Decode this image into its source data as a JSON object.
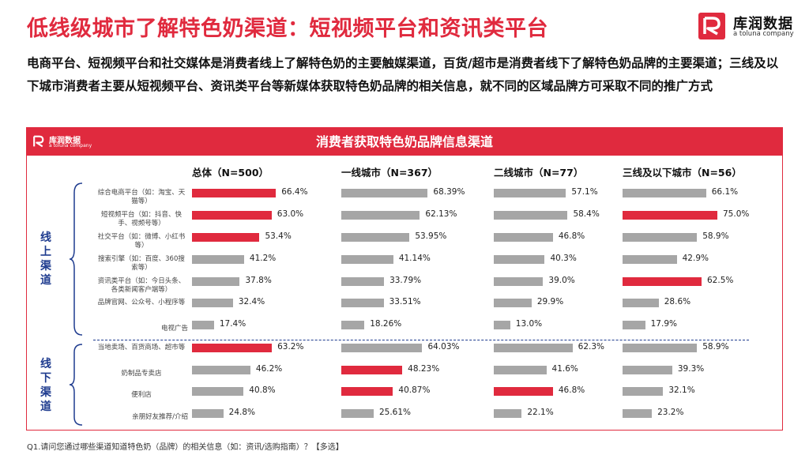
{
  "title": "低线级城市了解特色奶渠道：短视频平台和资讯类平台",
  "logo": {
    "brand": "库润数据",
    "sub": "a toluna company"
  },
  "intro": "电商平台、短视频平台和社交媒体是消费者线上了解特色奶的主要触媒渠道，百货/超市是消费者线下了解特色奶品牌的主要渠道；三线及以下城市消费者主要从短视频平台、资讯类平台等新媒体获取特色奶品牌的相关信息，就不同的区域品牌方可采取不同的推广方式",
  "panel": {
    "title": "消费者获取特色奶品牌信息渠道",
    "logo_brand": "库润数据",
    "logo_sub": "a toluna company"
  },
  "groups": {
    "online": "线上渠道",
    "offline": "线下渠道"
  },
  "footnote": "Q1.请问您通过哪些渠道知道特色奶（品牌）的相关信息（如：资讯/选购指南）？【多选】",
  "colors": {
    "highlight": "#e02a3e",
    "normal": "#a6a6a6",
    "accent_blue": "#1f3c8f"
  },
  "chart_data": {
    "type": "bar",
    "orientation": "horizontal",
    "title": "消费者获取特色奶品牌信息渠道",
    "categories": [
      "综合电商平台（如：淘宝、天猫等）",
      "短视频平台（如：抖音、快手、视频号等）",
      "社交平台（如：微博、小红书等）",
      "搜索引擎（如：百度、360搜索等）",
      "资讯类平台（如：今日头条、各类新闻客户端等）",
      "品牌官网、公众号、小程序等",
      "电视广告",
      "当地卖场、百货商场、超市等",
      "奶制品专卖店",
      "便利店",
      "亲朋好友推荐/介绍"
    ],
    "category_groups": [
      "线上渠道",
      "线上渠道",
      "线上渠道",
      "线上渠道",
      "线上渠道",
      "线上渠道",
      "线上渠道",
      "线下渠道",
      "线下渠道",
      "线下渠道",
      "线下渠道"
    ],
    "series": [
      {
        "name": "总体（N=500）",
        "values": [
          66.4,
          63.0,
          53.4,
          41.2,
          37.8,
          32.4,
          17.4,
          63.2,
          46.2,
          40.8,
          24.8
        ],
        "labels": [
          "66.4%",
          "63.0%",
          "53.4%",
          "41.2%",
          "37.8%",
          "32.4%",
          "17.4%",
          "63.2%",
          "46.2%",
          "40.8%",
          "24.8%"
        ],
        "highlight": [
          true,
          true,
          true,
          false,
          false,
          false,
          false,
          true,
          false,
          false,
          false
        ]
      },
      {
        "name": "一线城市（N=367）",
        "values": [
          68.39,
          62.13,
          53.95,
          41.14,
          33.79,
          33.51,
          18.26,
          64.03,
          48.23,
          40.87,
          25.61
        ],
        "labels": [
          "68.39%",
          "62.13%",
          "53.95%",
          "41.14%",
          "33.79%",
          "33.51%",
          "18.26%",
          "64.03%",
          "48.23%",
          "40.87%",
          "25.61%"
        ],
        "highlight": [
          false,
          false,
          false,
          false,
          false,
          false,
          false,
          false,
          true,
          true,
          false
        ]
      },
      {
        "name": "二线城市（N=77）",
        "values": [
          57.1,
          58.4,
          46.8,
          40.3,
          39.0,
          29.9,
          13.0,
          62.3,
          41.6,
          46.8,
          22.1
        ],
        "labels": [
          "57.1%",
          "58.4%",
          "46.8%",
          "40.3%",
          "39.0%",
          "29.9%",
          "13.0%",
          "62.3%",
          "41.6%",
          "46.8%",
          "22.1%"
        ],
        "highlight": [
          false,
          false,
          false,
          false,
          false,
          false,
          false,
          false,
          false,
          true,
          false
        ]
      },
      {
        "name": "三线及以下城市（N=56）",
        "values": [
          66.1,
          75.0,
          58.9,
          42.9,
          62.5,
          28.6,
          17.9,
          58.9,
          39.3,
          32.1,
          23.2
        ],
        "labels": [
          "66.1%",
          "75.0%",
          "58.9%",
          "42.9%",
          "62.5%",
          "28.6%",
          "17.9%",
          "58.9%",
          "39.3%",
          "32.1%",
          "23.2%"
        ],
        "highlight": [
          false,
          true,
          false,
          false,
          true,
          false,
          false,
          false,
          false,
          false,
          false
        ]
      }
    ],
    "unit": "%"
  }
}
